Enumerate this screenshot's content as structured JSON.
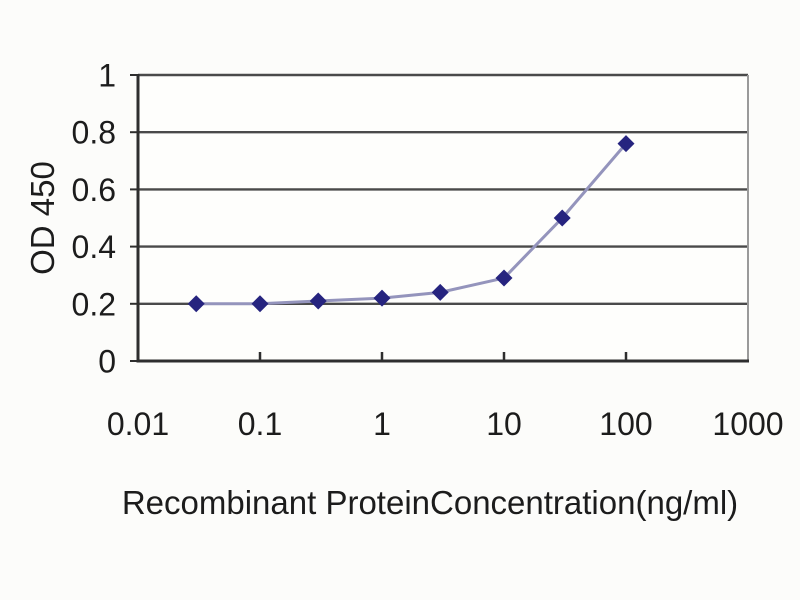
{
  "figure": {
    "background": "#fcfcfa",
    "plot_background": "#fefefc"
  },
  "chart_data": {
    "type": "line",
    "title": "",
    "xlabel": "Recombinant ProteinConcentration(ng/ml)",
    "ylabel": "OD 450",
    "x_scale": "log",
    "y_scale": "linear",
    "xlim": [
      0.01,
      1000
    ],
    "ylim": [
      0,
      1
    ],
    "x_ticks": [
      {
        "value": 0.01,
        "label": "0.01"
      },
      {
        "value": 0.1,
        "label": "0.1"
      },
      {
        "value": 1,
        "label": "1"
      },
      {
        "value": 10,
        "label": "10"
      },
      {
        "value": 100,
        "label": "100"
      },
      {
        "value": 1000,
        "label": "1000"
      }
    ],
    "y_ticks": [
      {
        "value": 0,
        "label": "0"
      },
      {
        "value": 0.2,
        "label": "0.2"
      },
      {
        "value": 0.4,
        "label": "0.4"
      },
      {
        "value": 0.6,
        "label": "0.6"
      },
      {
        "value": 0.8,
        "label": "0.8"
      },
      {
        "value": 1,
        "label": "1"
      }
    ],
    "grid": "horizontal",
    "legend": "none",
    "series": [
      {
        "name": "OD 450",
        "marker": "diamond",
        "x": [
          0.03,
          0.1,
          0.3,
          1,
          3,
          10,
          30,
          100
        ],
        "y": [
          0.2,
          0.2,
          0.21,
          0.22,
          0.24,
          0.29,
          0.5,
          0.76
        ]
      }
    ],
    "colors": {
      "text": "#1c1c1c",
      "axis": "#2e2e2e",
      "grid": "#4a4a4a",
      "plot_border_right": "#9a9a9a",
      "series_line": "#9494bc",
      "marker_fill": "#26247f"
    }
  }
}
